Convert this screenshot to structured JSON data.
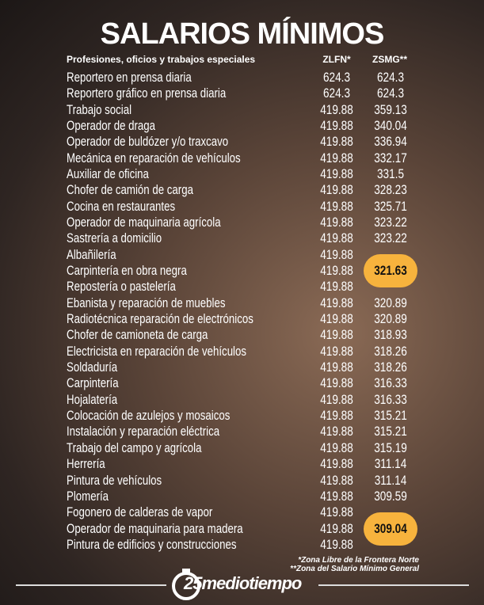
{
  "header": {
    "title": "SALARIOS MÍNIMOS",
    "col_name": "Profesiones, oficios y trabajos especiales",
    "col_zlfn": "ZLFN*",
    "col_zsmg": "ZSMG**"
  },
  "table": {
    "rows": [
      {
        "name": "Reportero en prensa diaria",
        "zlfn": "624.3",
        "zsmg": "624.3"
      },
      {
        "name": "Reportero gráfico en prensa diaria",
        "zlfn": "624.3",
        "zsmg": "624.3"
      },
      {
        "name": "Trabajo social",
        "zlfn": "419.88",
        "zsmg": "359.13"
      },
      {
        "name": "Operador de draga",
        "zlfn": "419.88",
        "zsmg": "340.04"
      },
      {
        "name": "Operador de buldózer y/o traxcavo",
        "zlfn": "419.88",
        "zsmg": "336.94"
      },
      {
        "name": "Mecánica en reparación de vehículos",
        "zlfn": "419.88",
        "zsmg": "332.17"
      },
      {
        "name": "Auxiliar de oficina",
        "zlfn": "419.88",
        "zsmg": "331.5"
      },
      {
        "name": "Chofer de camión de carga",
        "zlfn": "419.88",
        "zsmg": "328.23"
      },
      {
        "name": "Cocina en restaurantes",
        "zlfn": "419.88",
        "zsmg": "325.71"
      },
      {
        "name": "Operador de maquinaria agrícola",
        "zlfn": "419.88",
        "zsmg": "323.22"
      },
      {
        "name": "Sastrería a domicilio",
        "zlfn": "419.88",
        "zsmg": "323.22"
      },
      {
        "name": "Albañilería",
        "zlfn": "419.88"
      },
      {
        "name": "Carpintería en obra negra",
        "zlfn": "419.88",
        "zsmg": "321.63",
        "highlight": true
      },
      {
        "name": "Repostería o pastelería",
        "zlfn": "419.88"
      },
      {
        "name": "Ebanista y reparación de muebles",
        "zlfn": "419.88",
        "zsmg": "320.89"
      },
      {
        "name": "Radiotécnica reparación de electrónicos",
        "zlfn": "419.88",
        "zsmg": "320.89"
      },
      {
        "name": "Chofer de camioneta de carga",
        "zlfn": "419.88",
        "zsmg": "318.93"
      },
      {
        "name": "Electricista en reparación de vehículos",
        "zlfn": "419.88",
        "zsmg": "318.26"
      },
      {
        "name": "Soldaduría",
        "zlfn": "419.88",
        "zsmg": "318.26"
      },
      {
        "name": "Carpintería",
        "zlfn": "419.88",
        "zsmg": "316.33"
      },
      {
        "name": "Hojalatería",
        "zlfn": "419.88",
        "zsmg": "316.33"
      },
      {
        "name": "Colocación de azulejos y mosaicos",
        "zlfn": "419.88",
        "zsmg": "315.21"
      },
      {
        "name": "Instalación y reparación eléctrica",
        "zlfn": "419.88",
        "zsmg": "315.21"
      },
      {
        "name": "Trabajo del campo y agrícola",
        "zlfn": "419.88",
        "zsmg": "315.19"
      },
      {
        "name": "Herrería",
        "zlfn": "419.88",
        "zsmg": "311.14"
      },
      {
        "name": "Pintura de vehículos",
        "zlfn": "419.88",
        "zsmg": "311.14"
      },
      {
        "name": "Plomería",
        "zlfn": "419.88",
        "zsmg": "309.59"
      },
      {
        "name": "Fogonero de calderas de vapor",
        "zlfn": "419.88"
      },
      {
        "name": "Operador de maquinaria para madera",
        "zlfn": "419.88",
        "zsmg": "309.04",
        "highlight": true
      },
      {
        "name": "Pintura de edificios y construcciones",
        "zlfn": "419.88"
      }
    ]
  },
  "footer": {
    "note1": "*Zona Libre de la Frontera Norte",
    "note2": "**Zona del Salario Mínimo General",
    "logo": "25mediotiempo"
  }
}
